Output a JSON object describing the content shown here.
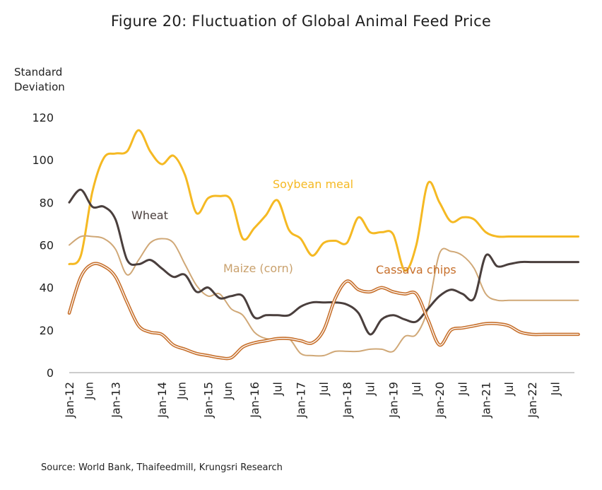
{
  "chart_data": {
    "type": "line",
    "title": "Figure 20: Fluctuation of Global Animal Feed Price",
    "ylabel_lines": [
      "Standard",
      "Deviation"
    ],
    "xlabel": "",
    "ylim": [
      0,
      120
    ],
    "yticks": [
      0,
      20,
      40,
      60,
      80,
      100,
      120
    ],
    "grid": false,
    "legend": "none (inline annotations)",
    "x_start": "Jan-12",
    "x_end": "Dec-22",
    "n_points": 45,
    "step_months": 3,
    "xtick_labels": [
      {
        "label": "Jan-12",
        "month_index": 0
      },
      {
        "label": "Jun",
        "month_index": 5
      },
      {
        "label": "Jan-13",
        "month_index": 12
      },
      {
        "label": "Jan-14",
        "month_index": 24
      },
      {
        "label": "Jun",
        "month_index": 29
      },
      {
        "label": "Jan-15",
        "month_index": 36
      },
      {
        "label": "Jun",
        "month_index": 41
      },
      {
        "label": "Jan-16",
        "month_index": 48
      },
      {
        "label": "Jul",
        "month_index": 54
      },
      {
        "label": "Jan-17",
        "month_index": 60
      },
      {
        "label": "Jul",
        "month_index": 66
      },
      {
        "label": "Jan-18",
        "month_index": 72
      },
      {
        "label": "Jul",
        "month_index": 78
      },
      {
        "label": "Jan-19",
        "month_index": 84
      },
      {
        "label": "Jul",
        "month_index": 90
      },
      {
        "label": "Jan-20",
        "month_index": 96
      },
      {
        "label": "Jul",
        "month_index": 102
      },
      {
        "label": "Jan-21",
        "month_index": 108
      },
      {
        "label": "Jul",
        "month_index": 114
      },
      {
        "label": "Jan-22",
        "month_index": 120
      },
      {
        "label": "Jul",
        "month_index": 126
      }
    ],
    "series": [
      {
        "name": "Soybean meal",
        "color": "#f5b923",
        "width": 3,
        "values": [
          51,
          55,
          85,
          101,
          103,
          104,
          114,
          104,
          98,
          102,
          93,
          75,
          82,
          83,
          81,
          63,
          68,
          74,
          81,
          67,
          63,
          55,
          61,
          62,
          61,
          73,
          66,
          66,
          65,
          48,
          60,
          89,
          80,
          71,
          73,
          72,
          66,
          64,
          64,
          64,
          64,
          64,
          64,
          64,
          64
        ]
      },
      {
        "name": "Maize (corn)",
        "color": "#d0a877",
        "width": 2,
        "values": [
          60,
          64,
          64,
          63,
          58,
          46,
          53,
          61,
          63,
          61,
          51,
          41,
          36,
          37,
          30,
          27,
          19,
          16,
          16,
          16,
          9,
          8,
          8,
          10,
          10,
          10,
          11,
          11,
          10,
          17,
          18,
          30,
          56,
          57,
          55,
          49,
          37,
          34,
          34,
          34,
          34,
          34,
          34,
          34,
          34
        ]
      },
      {
        "name": "Wheat",
        "color": "#4a3f3d",
        "width": 3,
        "values": [
          80,
          86,
          78,
          78,
          72,
          53,
          51,
          53,
          49,
          45,
          46,
          38,
          40,
          35,
          36,
          36,
          26,
          27,
          27,
          27,
          31,
          33,
          33,
          33,
          32,
          28,
          18,
          25,
          27,
          25,
          24,
          30,
          36,
          39,
          37,
          35,
          55,
          50,
          51,
          52,
          52,
          52,
          52,
          52,
          52
        ]
      },
      {
        "name": "Cassava chips",
        "color": "#c7702c",
        "width": 4.5,
        "values": [
          28,
          45,
          51,
          50,
          45,
          33,
          22,
          19,
          18,
          13,
          11,
          9,
          8,
          7,
          7,
          12,
          14,
          15,
          16,
          16,
          15,
          14,
          20,
          35,
          43,
          39,
          38,
          40,
          38,
          37,
          37,
          25,
          13,
          20,
          21,
          22,
          23,
          23,
          22,
          19,
          18,
          18,
          18,
          18,
          18
        ]
      }
    ],
    "annotations": [
      {
        "text": "Soybean meal",
        "series": "Soybean meal"
      },
      {
        "text": "Wheat",
        "series": "Wheat"
      },
      {
        "text": "Maize (corn)",
        "series": "Maize (corn)"
      },
      {
        "text": "Cassava chips",
        "series": "Cassava chips"
      }
    ]
  },
  "source": "Source: World Bank, Thaifeedmill, Krungsri Research"
}
